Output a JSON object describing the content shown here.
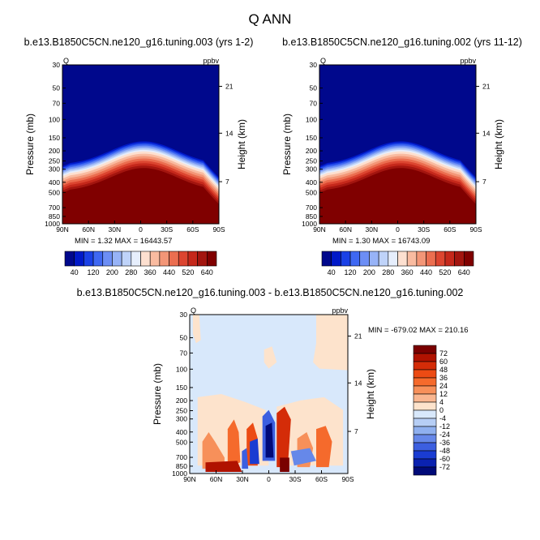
{
  "figure_title": "Q ANN",
  "chart_data": [
    {
      "type": "heatmap",
      "title": "b.e13.B1850C5CN.ne120_g16.tuning.003 (yrs 1-2)",
      "corner_left": "Q",
      "corner_right": "ppbv",
      "ylabel": "Pressure (mb)",
      "ylabel_right": "Height (km)",
      "yticks": [
        "30",
        "50",
        "70",
        "100",
        "150",
        "200",
        "250",
        "300",
        "400",
        "500",
        "700",
        "850",
        "1000"
      ],
      "yticks_right": [
        "21",
        "14",
        "7"
      ],
      "xticks": [
        "90N",
        "60N",
        "30N",
        "0",
        "30S",
        "60S",
        "90S"
      ],
      "stats": "MIN =    1.32   MAX =  16443.57",
      "colorbar_labels": [
        "40",
        "120",
        "200",
        "280",
        "360",
        "440",
        "520",
        "640"
      ],
      "colorbar_colors": [
        "#00088c",
        "#0019c8",
        "#1a41e6",
        "#3f68f2",
        "#6c8ef5",
        "#97b3f7",
        "#bfd3f9",
        "#e6eefc",
        "#fde0d0",
        "#f9bba0",
        "#f39677",
        "#eb6e50",
        "#dc4530",
        "#c5281b",
        "#a3150f",
        "#800000"
      ]
    },
    {
      "type": "heatmap",
      "title": "b.e13.B1850C5CN.ne120_g16.tuning.002 (yrs 11-12)",
      "corner_left": "Q",
      "corner_right": "ppbv",
      "ylabel": "Pressure (mb)",
      "ylabel_right": "Height (km)",
      "yticks": [
        "30",
        "50",
        "70",
        "100",
        "150",
        "200",
        "250",
        "300",
        "400",
        "500",
        "700",
        "850",
        "1000"
      ],
      "yticks_right": [
        "21",
        "14",
        "7"
      ],
      "xticks": [
        "90N",
        "60N",
        "30N",
        "0",
        "30S",
        "60S",
        "90S"
      ],
      "stats": "MIN =    1.30   MAX =  16743.09",
      "colorbar_labels": [
        "40",
        "120",
        "200",
        "280",
        "360",
        "440",
        "520",
        "640"
      ],
      "colorbar_colors": [
        "#00088c",
        "#0019c8",
        "#1a41e6",
        "#3f68f2",
        "#6c8ef5",
        "#97b3f7",
        "#bfd3f9",
        "#e6eefc",
        "#fde0d0",
        "#f9bba0",
        "#f39677",
        "#eb6e50",
        "#dc4530",
        "#c5281b",
        "#a3150f",
        "#800000"
      ]
    },
    {
      "type": "heatmap",
      "title": "b.e13.B1850C5CN.ne120_g16.tuning.003 - b.e13.B1850C5CN.ne120_g16.tuning.002",
      "corner_left": "Q",
      "corner_right": "ppbv",
      "ylabel": "Pressure (mb)",
      "ylabel_right": "Height (km)",
      "yticks": [
        "30",
        "50",
        "70",
        "100",
        "150",
        "200",
        "250",
        "300",
        "400",
        "500",
        "700",
        "850",
        "1000"
      ],
      "yticks_right": [
        "21",
        "14",
        "7"
      ],
      "xticks": [
        "90N",
        "60N",
        "30N",
        "0",
        "30S",
        "60S",
        "90S"
      ],
      "stats": "MIN = -679.02   MAX = 210.16",
      "colorbar_labels": [
        "72",
        "60",
        "48",
        "36",
        "24",
        "12",
        "4",
        "0",
        "-4",
        "-12",
        "-24",
        "-36",
        "-48",
        "-60",
        "-72"
      ],
      "colorbar_colors": [
        "#7a0000",
        "#b01200",
        "#d42c08",
        "#ec4b14",
        "#f56a2c",
        "#f7905a",
        "#f9b690",
        "#fde3cc",
        "#d8e8fb",
        "#b6cef5",
        "#8fb0ef",
        "#6688e9",
        "#3c5fe0",
        "#1a3cd2",
        "#0a22b0",
        "#000a78"
      ]
    }
  ]
}
